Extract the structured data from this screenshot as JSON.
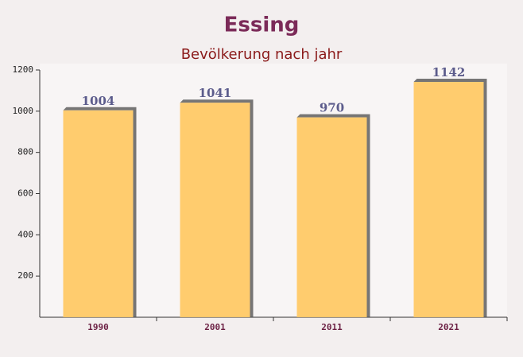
{
  "chart_data": {
    "type": "bar",
    "title": "Essing",
    "subtitle": "Bevölkerung nach jahr",
    "categories": [
      "1990",
      "2001",
      "2011",
      "2021"
    ],
    "values": [
      1004,
      1041,
      970,
      1142
    ],
    "color": "#ffc966",
    "ylim": [
      0,
      1200
    ],
    "yticks": [
      200,
      400,
      600,
      800,
      1000,
      1200
    ]
  }
}
